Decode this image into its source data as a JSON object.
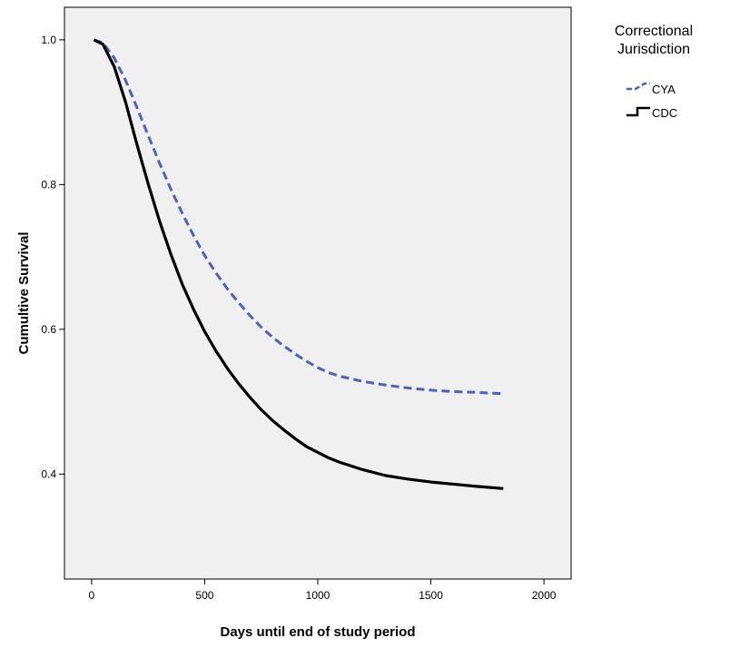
{
  "chart_data": {
    "type": "line",
    "title": "",
    "xlabel": "Days until end of study period",
    "ylabel": "Cumultive Survival",
    "xlim": [
      -120,
      2120
    ],
    "ylim": [
      0.255,
      1.045
    ],
    "x_ticks": [
      0,
      500,
      1000,
      1500,
      2000
    ],
    "x_tick_labels": [
      "0",
      "500",
      "1000",
      "1500",
      "2000"
    ],
    "y_ticks": [
      0.4,
      0.6,
      0.8,
      1.0
    ],
    "y_tick_labels": [
      "0.4",
      "0.6",
      "0.8",
      "1.0"
    ],
    "grid": false,
    "legend": {
      "title": "Correctional Jurisdiction",
      "title_lines": [
        "Correctional",
        "Jurisdiction"
      ],
      "placement": "top-right outside"
    },
    "series": [
      {
        "name": "CYA",
        "color": "#4e63b8",
        "style": "dashed",
        "points": [
          [
            10,
            1.0
          ],
          [
            50,
            0.996
          ],
          [
            100,
            0.975
          ],
          [
            150,
            0.944
          ],
          [
            200,
            0.907
          ],
          [
            250,
            0.868
          ],
          [
            300,
            0.83
          ],
          [
            350,
            0.794
          ],
          [
            400,
            0.761
          ],
          [
            450,
            0.73
          ],
          [
            500,
            0.702
          ],
          [
            550,
            0.678
          ],
          [
            600,
            0.656
          ],
          [
            650,
            0.637
          ],
          [
            700,
            0.619
          ],
          [
            750,
            0.603
          ],
          [
            800,
            0.589
          ],
          [
            850,
            0.577
          ],
          [
            900,
            0.566
          ],
          [
            950,
            0.556
          ],
          [
            1000,
            0.547
          ],
          [
            1050,
            0.54
          ],
          [
            1100,
            0.535
          ],
          [
            1200,
            0.528
          ],
          [
            1300,
            0.523
          ],
          [
            1400,
            0.519
          ],
          [
            1500,
            0.516
          ],
          [
            1600,
            0.514
          ],
          [
            1700,
            0.513
          ],
          [
            1820,
            0.511
          ]
        ]
      },
      {
        "name": "CDC",
        "color": "#000000",
        "style": "solid",
        "points": [
          [
            10,
            1.0
          ],
          [
            50,
            0.994
          ],
          [
            100,
            0.963
          ],
          [
            150,
            0.914
          ],
          [
            200,
            0.856
          ],
          [
            250,
            0.801
          ],
          [
            300,
            0.75
          ],
          [
            350,
            0.704
          ],
          [
            400,
            0.663
          ],
          [
            450,
            0.628
          ],
          [
            500,
            0.597
          ],
          [
            550,
            0.57
          ],
          [
            600,
            0.546
          ],
          [
            650,
            0.525
          ],
          [
            700,
            0.506
          ],
          [
            750,
            0.489
          ],
          [
            800,
            0.474
          ],
          [
            850,
            0.461
          ],
          [
            900,
            0.449
          ],
          [
            950,
            0.438
          ],
          [
            1000,
            0.43
          ],
          [
            1050,
            0.422
          ],
          [
            1100,
            0.416
          ],
          [
            1200,
            0.406
          ],
          [
            1300,
            0.398
          ],
          [
            1400,
            0.393
          ],
          [
            1500,
            0.389
          ],
          [
            1600,
            0.386
          ],
          [
            1700,
            0.383
          ],
          [
            1820,
            0.38
          ]
        ]
      }
    ]
  }
}
